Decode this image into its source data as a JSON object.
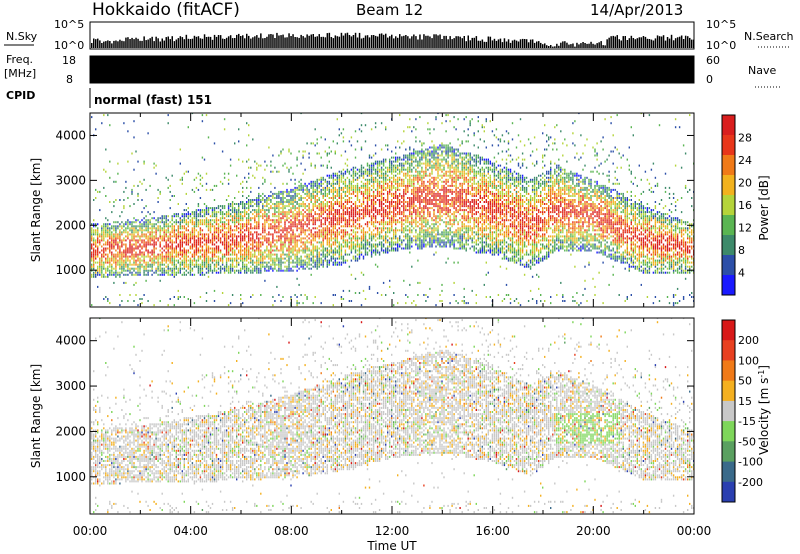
{
  "header": {
    "station": "Hokkaido (fitACF)",
    "beam": "Beam 12",
    "date": "14/Apr/2013"
  },
  "noise_panel": {
    "left_label": "N.Sky",
    "right_label": "N.Search",
    "tick_top": "10^5",
    "tick_bottom": "10^0"
  },
  "freq_panel": {
    "left_label_1": "Freq.",
    "left_label_2": "[MHz]",
    "right_label": "Nave",
    "left_ticks": [
      "18",
      "8"
    ],
    "right_ticks": [
      "60",
      "0"
    ]
  },
  "cpid_panel": {
    "label": "CPID",
    "mode": "normal (fast) 151"
  },
  "chart_data": [
    {
      "type": "heatmap",
      "title": "",
      "xlabel": "Time UT",
      "ylabel": "Slant Range [km]",
      "x_ticks": [
        "00:00",
        "04:00",
        "08:00",
        "12:00",
        "16:00",
        "20:00",
        "00:00"
      ],
      "xlim_hours": [
        0,
        24
      ],
      "y_ticks": [
        1000,
        2000,
        3000,
        4000
      ],
      "ylim": [
        180,
        4500
      ],
      "colorbar_label": "Power [dB]",
      "colorbar_ticks": [
        "4",
        "8",
        "12",
        "16",
        "20",
        "24",
        "28"
      ],
      "colorbar_range": [
        0,
        32
      ],
      "colors": [
        "#1a1aff",
        "#2c4fa8",
        "#3d8a6a",
        "#5ab552",
        "#b5d43a",
        "#f2b21e",
        "#f07a18",
        "#e8361a",
        "#d91e1e"
      ],
      "echo_band_km": [
        {
          "hour": 0,
          "low": 800,
          "high": 2000
        },
        {
          "hour": 2,
          "low": 850,
          "high": 2100
        },
        {
          "hour": 4,
          "low": 850,
          "high": 2300
        },
        {
          "hour": 6,
          "low": 900,
          "high": 2500
        },
        {
          "hour": 8,
          "low": 950,
          "high": 2800
        },
        {
          "hour": 10,
          "low": 1100,
          "high": 3200
        },
        {
          "hour": 12,
          "low": 1400,
          "high": 3500
        },
        {
          "hour": 14,
          "low": 1500,
          "high": 3800
        },
        {
          "hour": 16,
          "low": 1300,
          "high": 3400
        },
        {
          "hour": 17.5,
          "low": 1000,
          "high": 3000
        },
        {
          "hour": 18.5,
          "low": 1400,
          "high": 3300
        },
        {
          "hour": 20,
          "low": 1400,
          "high": 3000
        },
        {
          "hour": 22,
          "low": 900,
          "high": 2400
        },
        {
          "hour": 24,
          "low": 900,
          "high": 2000
        }
      ]
    },
    {
      "type": "heatmap",
      "title": "",
      "xlabel": "Time UT",
      "ylabel": "Slant Range [km]",
      "x_ticks": [
        "00:00",
        "04:00",
        "08:00",
        "12:00",
        "16:00",
        "20:00",
        "00:00"
      ],
      "xlim_hours": [
        0,
        24
      ],
      "y_ticks": [
        1000,
        2000,
        3000,
        4000
      ],
      "ylim": [
        180,
        4500
      ],
      "colorbar_label": "Velocity [m s^-1]",
      "colorbar_ticks": [
        "200",
        "100",
        "50",
        "15",
        "-15",
        "-50",
        "-100",
        "-200"
      ],
      "colorbar_range": [
        -250,
        250
      ],
      "colors": [
        "#2a3fb0",
        "#3a6a8a",
        "#5aa060",
        "#7ed65a",
        "#c8c8c8",
        "#f4b020",
        "#f07a18",
        "#e84020",
        "#d81818"
      ],
      "green_patch_hours": [
        18.5,
        21
      ],
      "green_patch_km": [
        1700,
        2400
      ]
    }
  ]
}
